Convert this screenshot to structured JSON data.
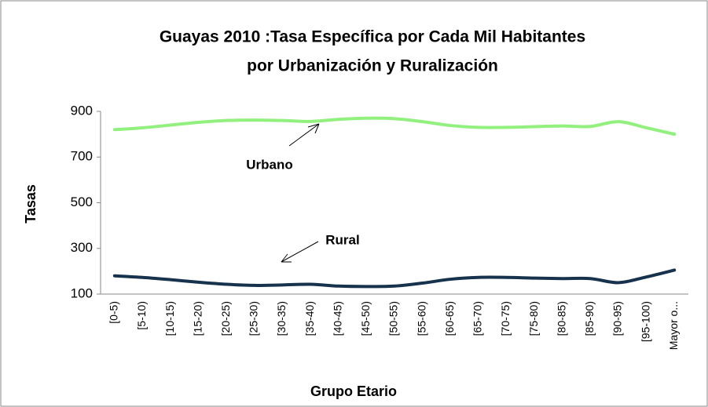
{
  "chart_data": {
    "type": "line",
    "title": "Guayas 2010 :Tasa Específica por Cada Mil Habitantes",
    "subtitle": "por  Urbanización y Ruralización",
    "x_label": "Grupo Etario",
    "y_label": "Tasas",
    "categories": [
      "[0-5)",
      "[5-10)",
      "[10-15)",
      "[15-20)",
      "[20-25)",
      "[25-30)",
      "[30-35)",
      "[35-40)",
      "[40-45)",
      "[45-50)",
      "[50-55)",
      "[55-60)",
      "[60-65)",
      "[65-70)",
      "[70-75)",
      "[75-80)",
      "[80-85)",
      "[85-90)",
      "[90-95)",
      "[95-100)",
      "Mayor o..."
    ],
    "series": [
      {
        "name": "Urbano",
        "color": "#92f07e",
        "values": [
          820,
          828,
          840,
          852,
          860,
          862,
          860,
          856,
          865,
          870,
          868,
          855,
          838,
          830,
          830,
          833,
          836,
          834,
          855,
          828,
          800
        ]
      },
      {
        "name": "Rural",
        "color": "#17324d",
        "values": [
          180,
          173,
          163,
          152,
          143,
          138,
          140,
          143,
          135,
          133,
          135,
          148,
          165,
          173,
          173,
          170,
          168,
          168,
          150,
          175,
          205
        ]
      }
    ],
    "ylim": [
      100,
      900
    ],
    "yticks": [
      100,
      300,
      500,
      700,
      900
    ],
    "grid": false
  }
}
